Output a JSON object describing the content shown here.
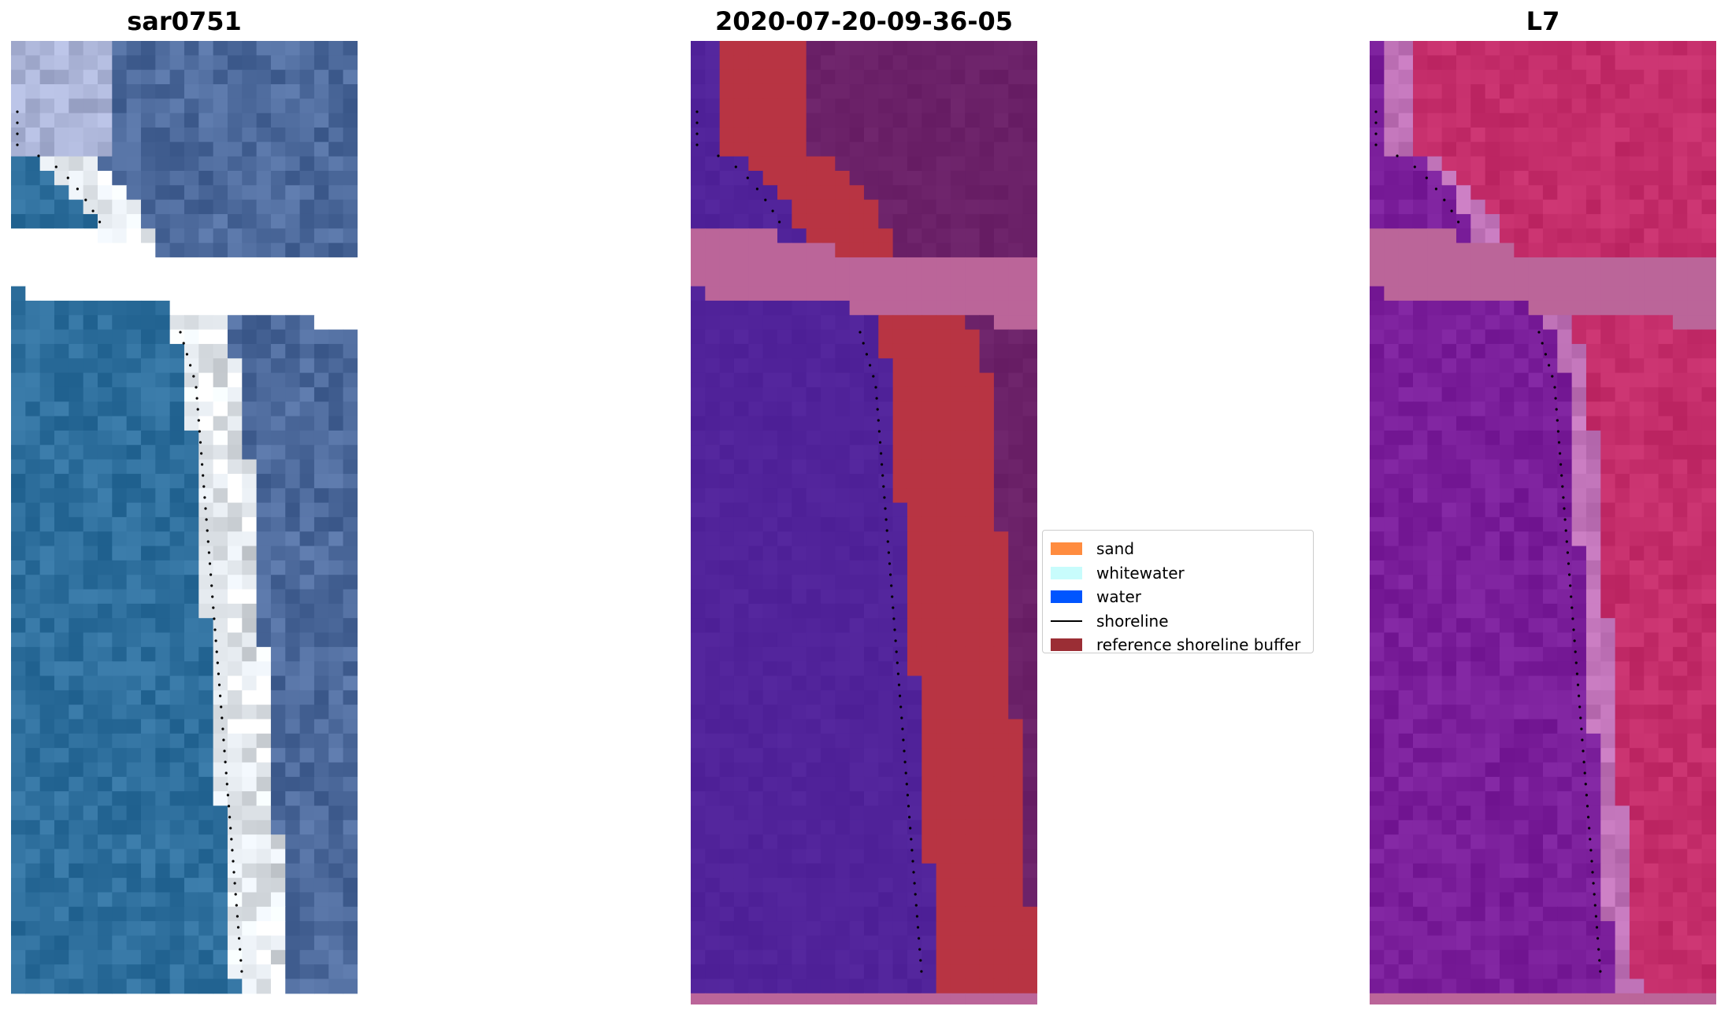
{
  "panels": [
    {
      "title": "sar0751",
      "kind": "rgb"
    },
    {
      "title": "2020-07-20-09-36-05",
      "kind": "classified"
    },
    {
      "title": "L7",
      "kind": "index"
    }
  ],
  "legend": {
    "items": [
      {
        "label": "sand",
        "type": "patch",
        "color": "#ff8c3f"
      },
      {
        "label": "whitewater",
        "type": "patch",
        "color": "#c8fcfc"
      },
      {
        "label": "water",
        "type": "patch",
        "color": "#0055ff"
      },
      {
        "label": "shoreline",
        "type": "line",
        "color": "#000000"
      },
      {
        "label": "reference shoreline buffer",
        "type": "patch",
        "color": "#9b2e35"
      }
    ]
  },
  "colors": {
    "rgb_water": "#2e6f9d",
    "rgb_sand": "#e8edf2",
    "rgb_land": "#4d6a9c",
    "class_water": "#51239a",
    "class_buffer": "#b83443",
    "class_land": "#6b2168",
    "class_nodata": "#bb6599",
    "index_water": "#7a1e9a",
    "index_land": "#c42d6a",
    "index_nodata": "#bb6599"
  }
}
